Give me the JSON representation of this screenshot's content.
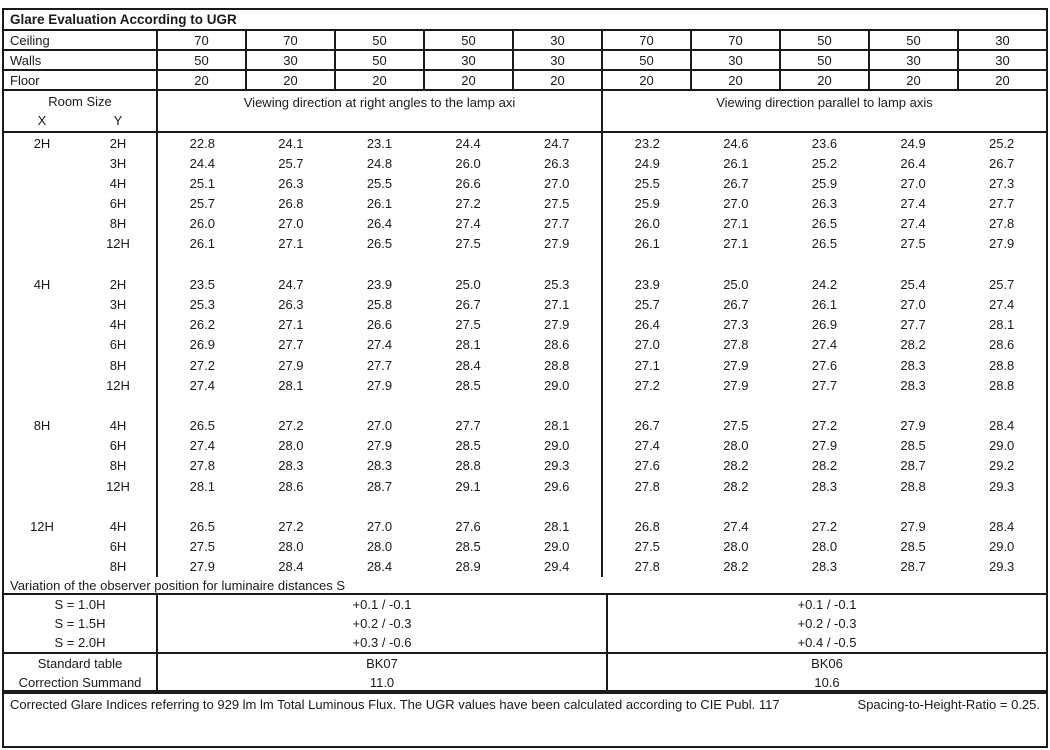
{
  "title": "Glare Evaluation According to UGR",
  "surface_rows": [
    {
      "label": "Ceiling",
      "values": [
        "70",
        "70",
        "50",
        "50",
        "30",
        "70",
        "70",
        "50",
        "50",
        "30"
      ]
    },
    {
      "label": "Walls",
      "values": [
        "50",
        "30",
        "50",
        "30",
        "30",
        "50",
        "30",
        "50",
        "30",
        "30"
      ]
    },
    {
      "label": "Floor",
      "values": [
        "20",
        "20",
        "20",
        "20",
        "20",
        "20",
        "20",
        "20",
        "20",
        "20"
      ]
    }
  ],
  "room_size": {
    "label": "Room Size",
    "x_label": "X",
    "y_label": "Y"
  },
  "group_headers": {
    "left": "Viewing direction at right angles to the lamp axi",
    "right": "Viewing direction parallel to lamp axis"
  },
  "ugr_rows": [
    {
      "x": "2H",
      "y": "2H",
      "values": [
        "22.8",
        "24.1",
        "23.1",
        "24.4",
        "24.7",
        "23.2",
        "24.6",
        "23.6",
        "24.9",
        "25.2"
      ]
    },
    {
      "x": "",
      "y": "3H",
      "values": [
        "24.4",
        "25.7",
        "24.8",
        "26.0",
        "26.3",
        "24.9",
        "26.1",
        "25.2",
        "26.4",
        "26.7"
      ]
    },
    {
      "x": "",
      "y": "4H",
      "values": [
        "25.1",
        "26.3",
        "25.5",
        "26.6",
        "27.0",
        "25.5",
        "26.7",
        "25.9",
        "27.0",
        "27.3"
      ]
    },
    {
      "x": "",
      "y": "6H",
      "values": [
        "25.7",
        "26.8",
        "26.1",
        "27.2",
        "27.5",
        "25.9",
        "27.0",
        "26.3",
        "27.4",
        "27.7"
      ]
    },
    {
      "x": "",
      "y": "8H",
      "values": [
        "26.0",
        "27.0",
        "26.4",
        "27.4",
        "27.7",
        "26.0",
        "27.1",
        "26.5",
        "27.4",
        "27.8"
      ]
    },
    {
      "x": "",
      "y": "12H",
      "values": [
        "26.1",
        "27.1",
        "26.5",
        "27.5",
        "27.9",
        "26.1",
        "27.1",
        "26.5",
        "27.5",
        "27.9"
      ]
    },
    {
      "x": "",
      "y": "",
      "values": [
        "",
        "",
        "",
        "",
        "",
        "",
        "",
        "",
        "",
        ""
      ]
    },
    {
      "x": "4H",
      "y": "2H",
      "values": [
        "23.5",
        "24.7",
        "23.9",
        "25.0",
        "25.3",
        "23.9",
        "25.0",
        "24.2",
        "25.4",
        "25.7"
      ]
    },
    {
      "x": "",
      "y": "3H",
      "values": [
        "25.3",
        "26.3",
        "25.8",
        "26.7",
        "27.1",
        "25.7",
        "26.7",
        "26.1",
        "27.0",
        "27.4"
      ]
    },
    {
      "x": "",
      "y": "4H",
      "values": [
        "26.2",
        "27.1",
        "26.6",
        "27.5",
        "27.9",
        "26.4",
        "27.3",
        "26.9",
        "27.7",
        "28.1"
      ]
    },
    {
      "x": "",
      "y": "6H",
      "values": [
        "26.9",
        "27.7",
        "27.4",
        "28.1",
        "28.6",
        "27.0",
        "27.8",
        "27.4",
        "28.2",
        "28.6"
      ]
    },
    {
      "x": "",
      "y": "8H",
      "values": [
        "27.2",
        "27.9",
        "27.7",
        "28.4",
        "28.8",
        "27.1",
        "27.9",
        "27.6",
        "28.3",
        "28.8"
      ]
    },
    {
      "x": "",
      "y": "12H",
      "values": [
        "27.4",
        "28.1",
        "27.9",
        "28.5",
        "29.0",
        "27.2",
        "27.9",
        "27.7",
        "28.3",
        "28.8"
      ]
    },
    {
      "x": "",
      "y": "",
      "values": [
        "",
        "",
        "",
        "",
        "",
        "",
        "",
        "",
        "",
        ""
      ]
    },
    {
      "x": "8H",
      "y": "4H",
      "values": [
        "26.5",
        "27.2",
        "27.0",
        "27.7",
        "28.1",
        "26.7",
        "27.5",
        "27.2",
        "27.9",
        "28.4"
      ]
    },
    {
      "x": "",
      "y": "6H",
      "values": [
        "27.4",
        "28.0",
        "27.9",
        "28.5",
        "29.0",
        "27.4",
        "28.0",
        "27.9",
        "28.5",
        "29.0"
      ]
    },
    {
      "x": "",
      "y": "8H",
      "values": [
        "27.8",
        "28.3",
        "28.3",
        "28.8",
        "29.3",
        "27.6",
        "28.2",
        "28.2",
        "28.7",
        "29.2"
      ]
    },
    {
      "x": "",
      "y": "12H",
      "values": [
        "28.1",
        "28.6",
        "28.7",
        "29.1",
        "29.6",
        "27.8",
        "28.2",
        "28.3",
        "28.8",
        "29.3"
      ]
    },
    {
      "x": "",
      "y": "",
      "values": [
        "",
        "",
        "",
        "",
        "",
        "",
        "",
        "",
        "",
        ""
      ]
    },
    {
      "x": "12H",
      "y": "4H",
      "values": [
        "26.5",
        "27.2",
        "27.0",
        "27.6",
        "28.1",
        "26.8",
        "27.4",
        "27.2",
        "27.9",
        "28.4"
      ]
    },
    {
      "x": "",
      "y": "6H",
      "values": [
        "27.5",
        "28.0",
        "28.0",
        "28.5",
        "29.0",
        "27.5",
        "28.0",
        "28.0",
        "28.5",
        "29.0"
      ]
    },
    {
      "x": "",
      "y": "8H",
      "values": [
        "27.9",
        "28.4",
        "28.4",
        "28.9",
        "29.4",
        "27.8",
        "28.2",
        "28.3",
        "28.7",
        "29.3"
      ]
    }
  ],
  "variation_label": "Variation of the observer position for luminaire distances S",
  "variation_rows": [
    {
      "label": "S = 1.0H",
      "left": "+0.1 / -0.1",
      "right": "+0.1 / -0.1"
    },
    {
      "label": "S = 1.5H",
      "left": "+0.2 / -0.3",
      "right": "+0.2 / -0.3"
    },
    {
      "label": "S = 2.0H",
      "left": "+0.3 / -0.6",
      "right": "+0.4 / -0.5"
    }
  ],
  "summary_rows": [
    {
      "label": "Standard table",
      "left": "BK07",
      "right": "BK06"
    },
    {
      "label": "Correction Summand",
      "left": "11.0",
      "right": "10.6"
    }
  ],
  "footer": {
    "text_main": "Corrected Glare Indices referring to 929 lm lm Total Luminous Flux. The UGR values have been calculated according to CIE Publ. 117",
    "text_ratio": "Spacing-to-Height-Ratio = 0.25."
  },
  "colors": {
    "text": "#1a1a1a",
    "border": "#1a1a1a",
    "background": "#ffffff"
  }
}
